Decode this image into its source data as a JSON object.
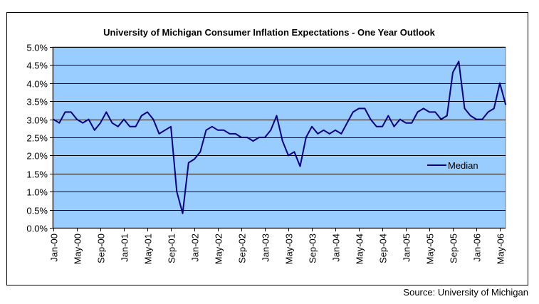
{
  "chart_data": {
    "type": "line",
    "title": "University of Michigan Consumer Inflation Expectations - One Year Outlook",
    "xlabel": "",
    "ylabel": "",
    "ylim": [
      0,
      5.0
    ],
    "y_ticks": [
      "0.0%",
      "0.5%",
      "1.0%",
      "1.5%",
      "2.0%",
      "2.5%",
      "3.0%",
      "3.5%",
      "4.0%",
      "4.5%",
      "5.0%"
    ],
    "y_tick_values": [
      0,
      0.5,
      1.0,
      1.5,
      2.0,
      2.5,
      3.0,
      3.5,
      4.0,
      4.5,
      5.0
    ],
    "x_ticks": [
      "Jan-00",
      "May-00",
      "Sep-00",
      "Jan-01",
      "May-01",
      "Sep-01",
      "Jan-02",
      "May-02",
      "Sep-02",
      "Jan-03",
      "May-03",
      "Sep-03",
      "Jan-04",
      "May-04",
      "Sep-04",
      "Jan-05",
      "May-05",
      "Sep-05",
      "Jan-06",
      "May-06"
    ],
    "x_tick_interval_months": 4,
    "grid": true,
    "legend": {
      "entries": [
        "Median"
      ],
      "placement": "right-inside"
    },
    "source_note": "Source: University of Michigan",
    "colors": {
      "plot_bg": "#99ccff",
      "line": "#000080",
      "grid": "#000000"
    },
    "series": [
      {
        "name": "Median",
        "start": "Jan-00",
        "frequency": "monthly",
        "values": [
          3.0,
          2.9,
          3.2,
          3.2,
          3.0,
          2.9,
          3.0,
          2.7,
          2.9,
          3.2,
          2.9,
          2.8,
          3.0,
          2.8,
          2.8,
          3.1,
          3.2,
          3.0,
          2.6,
          2.7,
          2.8,
          1.0,
          0.4,
          1.8,
          1.9,
          2.1,
          2.7,
          2.8,
          2.7,
          2.7,
          2.6,
          2.6,
          2.5,
          2.5,
          2.4,
          2.5,
          2.5,
          2.7,
          3.1,
          2.4,
          2.0,
          2.1,
          1.7,
          2.5,
          2.8,
          2.6,
          2.7,
          2.6,
          2.7,
          2.6,
          2.9,
          3.2,
          3.3,
          3.3,
          3.0,
          2.8,
          2.8,
          3.1,
          2.8,
          3.0,
          2.9,
          2.9,
          3.2,
          3.3,
          3.2,
          3.2,
          3.0,
          3.1,
          4.3,
          4.6,
          3.3,
          3.1,
          3.0,
          3.0,
          3.2,
          3.3,
          4.0,
          3.4
        ]
      }
    ]
  }
}
